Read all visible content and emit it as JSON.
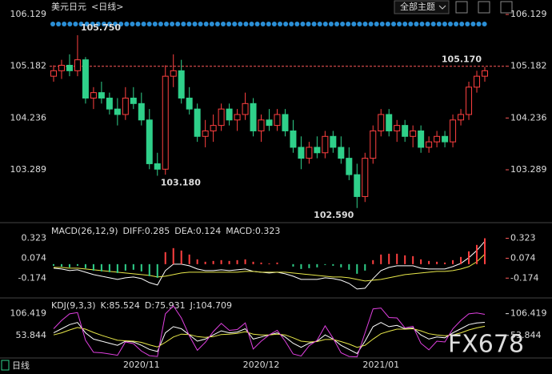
{
  "toolbar": {
    "menu": "全部主题"
  },
  "footer": {
    "period_tab": "日线"
  },
  "watermark": "FX678",
  "chart_data": [
    {
      "type": "candlestick",
      "title": "美元日元",
      "subtitle": "<日线>",
      "categories": [
        null,
        null,
        null,
        null,
        null,
        null,
        null,
        null,
        null,
        null,
        null,
        "2020/11",
        null,
        null,
        null,
        null,
        null,
        null,
        null,
        null,
        null,
        null,
        null,
        null,
        null,
        null,
        "2020/12",
        null,
        null,
        null,
        null,
        null,
        null,
        null,
        null,
        null,
        null,
        null,
        null,
        null,
        null,
        "2021/01",
        null,
        null,
        null,
        null,
        null,
        null,
        null,
        null,
        null,
        null,
        null,
        null,
        null
      ],
      "open": [
        105.0,
        105.1,
        105.2,
        105.1,
        105.3,
        104.6,
        104.7,
        104.6,
        104.4,
        104.3,
        104.6,
        104.5,
        104.2,
        103.4,
        103.3,
        105.0,
        105.1,
        104.6,
        104.4,
        103.9,
        104.0,
        104.1,
        104.4,
        104.2,
        104.3,
        104.5,
        104.0,
        104.2,
        104.1,
        104.3,
        104.0,
        103.7,
        103.5,
        103.7,
        103.6,
        103.9,
        103.7,
        103.5,
        103.2,
        102.8,
        103.5,
        104.0,
        104.3,
        104.0,
        104.1,
        103.9,
        104.0,
        103.7,
        103.8,
        103.9,
        103.8,
        104.2,
        104.3,
        104.8,
        105.0
      ],
      "high": [
        105.2,
        105.3,
        105.4,
        105.75,
        105.35,
        104.8,
        104.9,
        104.7,
        104.6,
        104.8,
        104.8,
        104.7,
        104.4,
        103.6,
        105.2,
        105.4,
        105.3,
        104.8,
        104.5,
        104.2,
        104.3,
        104.5,
        104.5,
        104.4,
        104.7,
        104.6,
        104.3,
        104.4,
        104.4,
        104.4,
        104.2,
        103.9,
        103.8,
        103.9,
        104.0,
        104.0,
        103.9,
        103.7,
        103.4,
        103.6,
        104.1,
        104.4,
        104.4,
        104.2,
        104.2,
        104.1,
        104.1,
        103.9,
        104.0,
        104.0,
        104.3,
        104.4,
        104.9,
        105.1,
        105.17
      ],
      "low": [
        104.9,
        104.95,
        105.0,
        105.0,
        104.5,
        104.4,
        104.5,
        104.3,
        104.1,
        104.2,
        104.4,
        104.1,
        103.3,
        103.18,
        103.2,
        104.8,
        104.5,
        104.3,
        103.8,
        103.7,
        103.8,
        104.0,
        104.1,
        104.0,
        104.2,
        103.9,
        103.8,
        104.0,
        104.0,
        103.9,
        103.6,
        103.3,
        103.4,
        103.5,
        103.5,
        103.6,
        103.4,
        103.1,
        102.59,
        102.7,
        103.4,
        103.9,
        103.9,
        103.8,
        103.8,
        103.7,
        103.6,
        103.6,
        103.7,
        103.7,
        103.7,
        104.1,
        104.2,
        104.7,
        104.9
      ],
      "close": [
        105.1,
        105.2,
        105.1,
        105.3,
        104.6,
        104.7,
        104.6,
        104.4,
        104.3,
        104.6,
        104.5,
        104.2,
        103.4,
        103.3,
        105.0,
        105.1,
        104.6,
        104.4,
        103.9,
        104.0,
        104.1,
        104.4,
        104.2,
        104.3,
        104.5,
        104.0,
        104.2,
        104.1,
        104.3,
        104.0,
        103.7,
        103.5,
        103.7,
        103.6,
        103.9,
        103.7,
        103.5,
        103.2,
        102.8,
        103.5,
        104.0,
        104.3,
        104.0,
        104.1,
        103.9,
        104.0,
        103.7,
        103.8,
        103.9,
        103.8,
        104.2,
        104.3,
        104.8,
        105.0,
        105.1
      ],
      "up_color": "#ff4040",
      "down_color": "#2fd08a",
      "ylim": [
        102.44,
        106.32
      ],
      "yticks": [
        106.129,
        105.182,
        104.236,
        103.289
      ],
      "tick_color": "#ff5a5a",
      "price_line": 105.182,
      "annotations": [
        {
          "label": "105.750",
          "value": 105.75
        },
        {
          "label": "103.180",
          "value": 103.18
        },
        {
          "label": "102.590",
          "value": 102.59
        },
        {
          "label": "105.170",
          "value": 105.17
        }
      ]
    },
    {
      "type": "macd",
      "title": "MACD(26,12,9)",
      "up_color": "#ff4040",
      "down_color": "#2fd08a",
      "ylim": [
        -0.361,
        0.468
      ],
      "yticks": [
        0.323,
        0.074,
        -0.174
      ],
      "tick_color": "#ff5a5a",
      "series": [
        {
          "name": "DIFF:0.285",
          "color": "#ffffff",
          "values": [
            -0.05,
            -0.06,
            -0.08,
            -0.07,
            -0.1,
            -0.13,
            -0.15,
            -0.17,
            -0.19,
            -0.17,
            -0.16,
            -0.18,
            -0.23,
            -0.26,
            -0.08,
            0.0,
            0.0,
            -0.02,
            -0.06,
            -0.08,
            -0.08,
            -0.07,
            -0.08,
            -0.07,
            -0.06,
            -0.09,
            -0.1,
            -0.11,
            -0.1,
            -0.12,
            -0.15,
            -0.19,
            -0.19,
            -0.19,
            -0.17,
            -0.18,
            -0.2,
            -0.24,
            -0.31,
            -0.3,
            -0.18,
            -0.08,
            -0.04,
            -0.02,
            -0.02,
            -0.02,
            -0.05,
            -0.06,
            -0.06,
            -0.06,
            -0.03,
            0.01,
            0.08,
            0.17,
            0.285
          ]
        },
        {
          "name": "DEA:0.124",
          "color": "#e8e84a",
          "values": [
            -0.04,
            -0.04,
            -0.05,
            -0.05,
            -0.06,
            -0.07,
            -0.08,
            -0.09,
            -0.1,
            -0.11,
            -0.12,
            -0.13,
            -0.14,
            -0.16,
            -0.15,
            -0.13,
            -0.11,
            -0.1,
            -0.1,
            -0.1,
            -0.1,
            -0.1,
            -0.1,
            -0.1,
            -0.09,
            -0.09,
            -0.1,
            -0.1,
            -0.1,
            -0.1,
            -0.11,
            -0.12,
            -0.13,
            -0.14,
            -0.15,
            -0.16,
            -0.16,
            -0.17,
            -0.19,
            -0.21,
            -0.2,
            -0.19,
            -0.17,
            -0.15,
            -0.13,
            -0.12,
            -0.11,
            -0.1,
            -0.09,
            -0.09,
            -0.08,
            -0.06,
            -0.03,
            0.03,
            0.124
          ]
        },
        {
          "name": "MACD:0.323",
          "color": "#e040e0",
          "style": "bar",
          "values": [
            -0.02,
            -0.03,
            -0.04,
            -0.02,
            -0.05,
            -0.08,
            -0.09,
            -0.1,
            -0.11,
            -0.08,
            -0.07,
            -0.09,
            -0.15,
            -0.17,
            0.15,
            0.2,
            0.17,
            0.12,
            0.06,
            0.03,
            0.04,
            0.05,
            0.04,
            0.05,
            0.06,
            0.03,
            0.02,
            0.01,
            0.02,
            0.0,
            -0.03,
            -0.06,
            -0.05,
            -0.04,
            -0.01,
            -0.02,
            -0.04,
            -0.07,
            -0.12,
            -0.08,
            0.05,
            0.12,
            0.13,
            0.13,
            0.11,
            0.1,
            0.06,
            0.04,
            0.03,
            0.02,
            0.05,
            0.09,
            0.16,
            0.24,
            0.323
          ]
        }
      ]
    },
    {
      "type": "line",
      "title": "KDJ(9,3,3)",
      "ylim": [
        1.27,
        136.7
      ],
      "yticks": [
        106.419,
        53.844
      ],
      "tick_color": "#e6e6e6",
      "series": [
        {
          "name": "K:85.524",
          "color": "#ffffff",
          "values": [
            60,
            70,
            80,
            85,
            60,
            45,
            40,
            35,
            30,
            40,
            38,
            30,
            20,
            15,
            60,
            75,
            70,
            55,
            40,
            45,
            55,
            65,
            60,
            62,
            70,
            45,
            50,
            55,
            60,
            50,
            35,
            25,
            35,
            40,
            55,
            45,
            30,
            20,
            10,
            40,
            75,
            85,
            75,
            78,
            70,
            72,
            55,
            45,
            50,
            48,
            60,
            70,
            80,
            84,
            85.524
          ]
        },
        {
          "name": "D:75.931",
          "color": "#e8e84a",
          "values": [
            55,
            60,
            67,
            73,
            69,
            61,
            54,
            48,
            42,
            41,
            40,
            37,
            31,
            26,
            37,
            50,
            57,
            56,
            51,
            49,
            51,
            56,
            57,
            59,
            63,
            57,
            55,
            55,
            57,
            55,
            48,
            40,
            38,
            39,
            44,
            44,
            39,
            33,
            25,
            30,
            45,
            58,
            64,
            69,
            69,
            70,
            65,
            58,
            55,
            53,
            55,
            60,
            67,
            72,
            75.931
          ]
        },
        {
          "name": "J:104.709",
          "color": "#e040e0",
          "values": [
            70,
            90,
            106,
            109,
            42,
            13,
            12,
            9,
            6,
            38,
            34,
            16,
            5,
            3,
            106,
            125,
            96,
            53,
            18,
            37,
            63,
            83,
            66,
            68,
            84,
            21,
            40,
            55,
            66,
            40,
            9,
            4,
            29,
            42,
            77,
            47,
            12,
            3,
            2,
            60,
            118,
            120,
            97,
            96,
            72,
            76,
            35,
            19,
            40,
            38,
            70,
            90,
            106,
            108,
            104.709
          ]
        }
      ]
    }
  ]
}
